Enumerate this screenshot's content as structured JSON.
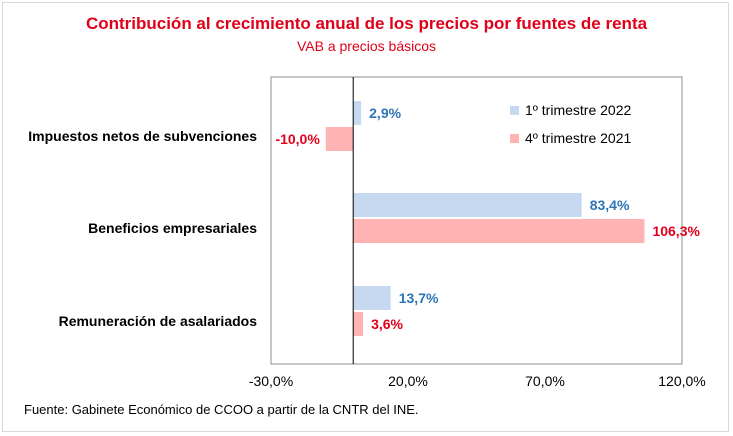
{
  "chart_data": {
    "type": "bar",
    "orientation": "horizontal",
    "title": "Contribución al crecimiento anual de los precios por fuentes de renta",
    "subtitle": "VAB a precios básicos",
    "categories": [
      "Impuestos netos de subvenciones",
      "Beneficios empresariales",
      "Remuneración de asalariados"
    ],
    "series": [
      {
        "name": "1º trimestre 2022",
        "values": [
          2.9,
          83.4,
          13.7
        ],
        "labels": [
          "2,9%",
          "83,4%",
          "13,7%"
        ],
        "color": "#c6d9f1",
        "label_color": "#2e75b6"
      },
      {
        "name": "4º trimestre 2021",
        "values": [
          -10.0,
          106.3,
          3.6
        ],
        "labels": [
          "-10,0%",
          "106,3%",
          "3,6%"
        ],
        "color": "#ffb3b3",
        "label_color": "#e0001a"
      }
    ],
    "xlim": [
      -30,
      120
    ],
    "xticks": [
      -30,
      20,
      70,
      120
    ],
    "xtick_labels": [
      "-30,0%",
      "20,0%",
      "70,0%",
      "120,0%"
    ],
    "legend": "top-right",
    "grid": false
  },
  "source": "Fuente: Gabinete Económico de CCOO a partir de la CNTR del INE."
}
